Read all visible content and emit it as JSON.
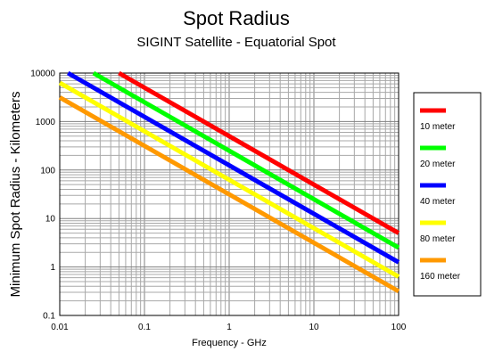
{
  "chart_data": {
    "type": "line",
    "title": "Spot Radius",
    "subtitle": "SIGINT Satellite - Equatorial Spot",
    "xlabel": "Frequency - GHz",
    "ylabel": "Minimum Spot Radius - Kilometers",
    "xscale": "log",
    "yscale": "log",
    "xlim": [
      0.01,
      100
    ],
    "ylim": [
      0.1,
      10000
    ],
    "xticks": [
      "0.01",
      "0.1",
      "1",
      "10",
      "100"
    ],
    "yticks": [
      "0.1",
      "1",
      "10",
      "100",
      "1000",
      "10000"
    ],
    "grid": true,
    "legend_position": "right",
    "series": [
      {
        "name": "10 meter",
        "color": "#ff0000",
        "x": [
          0.05,
          100
        ],
        "y": [
          10000,
          5
        ]
      },
      {
        "name": "20 meter",
        "color": "#00ff00",
        "x": [
          0.025,
          100
        ],
        "y": [
          10000,
          2.5
        ]
      },
      {
        "name": "40 meter",
        "color": "#0000ff",
        "x": [
          0.0125,
          100
        ],
        "y": [
          10000,
          1.25
        ]
      },
      {
        "name": "80 meter",
        "color": "#ffff00",
        "x": [
          0.01,
          100
        ],
        "y": [
          6300,
          0.63
        ]
      },
      {
        "name": "160 meter",
        "color": "#ff9900",
        "x": [
          0.01,
          100
        ],
        "y": [
          3150,
          0.315
        ]
      }
    ]
  }
}
